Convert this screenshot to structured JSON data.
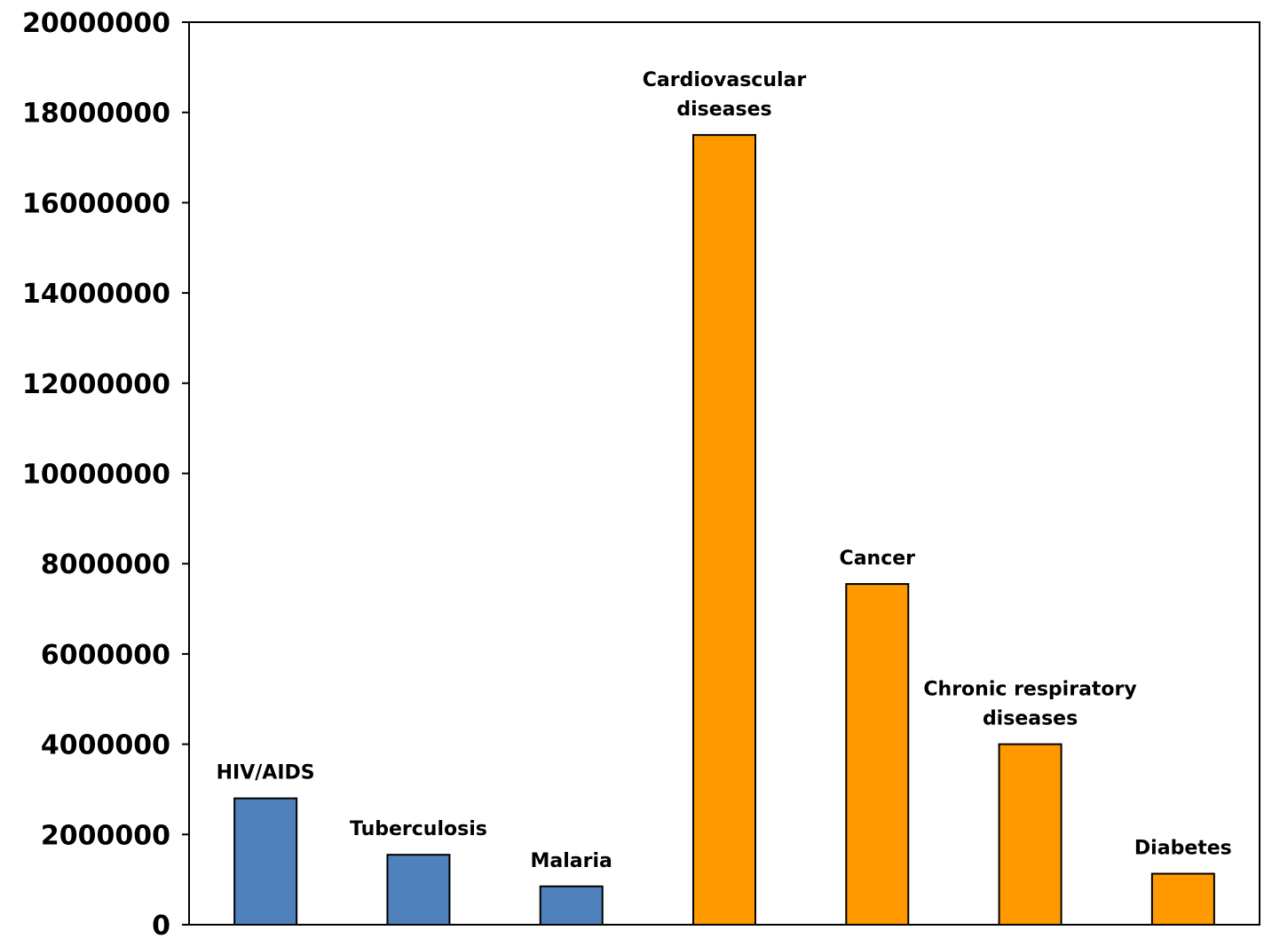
{
  "chart_data": {
    "type": "bar",
    "title": "",
    "xlabel": "",
    "ylabel": "",
    "ylim": [
      0,
      20000000
    ],
    "yticks": [
      0,
      2000000,
      4000000,
      6000000,
      8000000,
      10000000,
      12000000,
      14000000,
      16000000,
      18000000,
      20000000
    ],
    "ytick_labels": [
      "0",
      "2000000",
      "4000000",
      "6000000",
      "8000000",
      "10000000",
      "12000000",
      "14000000",
      "16000000",
      "18000000",
      "20000000"
    ],
    "grid": false,
    "legend": "none",
    "categories": [
      "HIV/AIDS",
      "Tuberculosis",
      "Malaria",
      "Cardiovascular diseases",
      "Cancer",
      "Chronic respiratory diseases",
      "Diabetes"
    ],
    "label_lines": [
      [
        "HIV/AIDS"
      ],
      [
        "Tuberculosis"
      ],
      [
        "Malaria"
      ],
      [
        "Cardiovascular",
        "diseases"
      ],
      [
        "Cancer"
      ],
      [
        "Chronic respiratory",
        "diseases"
      ],
      [
        "Diabetes"
      ]
    ],
    "values": [
      2800000,
      1550000,
      850000,
      17500000,
      7550000,
      4000000,
      1130000
    ],
    "colors": [
      "#4f81bd",
      "#4f81bd",
      "#4f81bd",
      "#ff9900",
      "#ff9900",
      "#ff9900",
      "#ff9900"
    ]
  }
}
